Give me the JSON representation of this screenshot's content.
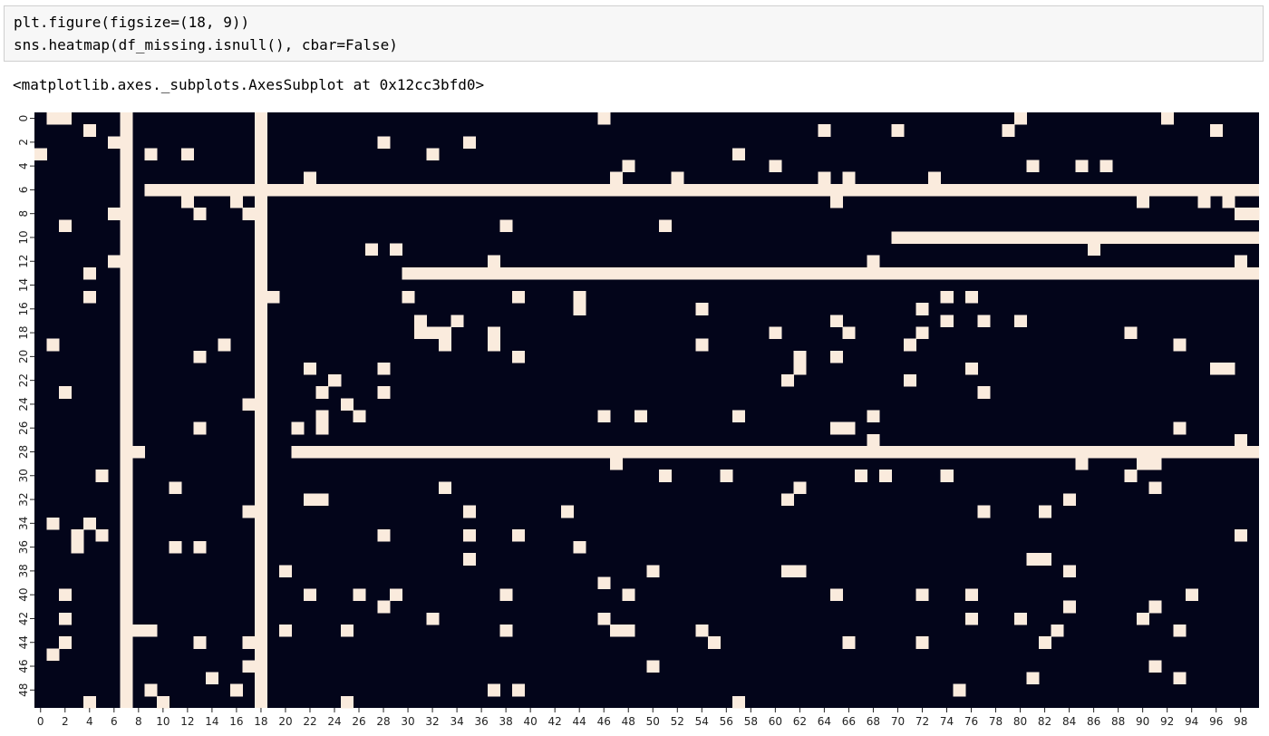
{
  "code": {
    "lines": [
      "plt.figure(figsize=(18, 9))",
      "sns.heatmap(df_missing.isnull(), cbar=False)"
    ]
  },
  "output": {
    "repr": "<matplotlib.axes._subplots.AxesSubplot at 0x12cc3bfd0>"
  },
  "colors": {
    "present": "#03051a",
    "missing": "#faebdd"
  },
  "chart_data": {
    "type": "heatmap",
    "title": "",
    "xlabel": "",
    "ylabel": "",
    "n_rows": 50,
    "n_cols": 100,
    "cbar": false,
    "x_tick_labels": [
      "0",
      "2",
      "4",
      "6",
      "8",
      "10",
      "12",
      "14",
      "16",
      "18",
      "20",
      "22",
      "24",
      "26",
      "28",
      "30",
      "32",
      "34",
      "36",
      "38",
      "40",
      "42",
      "44",
      "46",
      "48",
      "50",
      "52",
      "54",
      "56",
      "58",
      "60",
      "62",
      "64",
      "66",
      "68",
      "70",
      "72",
      "74",
      "76",
      "78",
      "80",
      "82",
      "84",
      "86",
      "88",
      "90",
      "92",
      "94",
      "96",
      "98"
    ],
    "y_tick_labels": [
      "0",
      "2",
      "4",
      "6",
      "8",
      "10",
      "12",
      "14",
      "16",
      "18",
      "20",
      "22",
      "24",
      "26",
      "28",
      "30",
      "32",
      "34",
      "36",
      "38",
      "40",
      "42",
      "44",
      "46",
      "48"
    ],
    "full_missing_columns": [
      7,
      18
    ],
    "missing_row_spans": [
      {
        "row": 6,
        "from_col": 9,
        "to_col": 99
      },
      {
        "row": 10,
        "from_col": 70,
        "to_col": 99
      },
      {
        "row": 13,
        "from_col": 30,
        "to_col": 99
      },
      {
        "row": 28,
        "from_col": 21,
        "to_col": 99
      }
    ],
    "missing_cells": [
      [
        0,
        1
      ],
      [
        0,
        2
      ],
      [
        0,
        46
      ],
      [
        0,
        80
      ],
      [
        0,
        92
      ],
      [
        1,
        4
      ],
      [
        1,
        64
      ],
      [
        1,
        70
      ],
      [
        1,
        79
      ],
      [
        1,
        96
      ],
      [
        2,
        6
      ],
      [
        2,
        28
      ],
      [
        2,
        35
      ],
      [
        3,
        0
      ],
      [
        3,
        9
      ],
      [
        3,
        12
      ],
      [
        3,
        32
      ],
      [
        3,
        57
      ],
      [
        4,
        48
      ],
      [
        4,
        60
      ],
      [
        4,
        81
      ],
      [
        4,
        85
      ],
      [
        4,
        87
      ],
      [
        5,
        22
      ],
      [
        5,
        47
      ],
      [
        5,
        52
      ],
      [
        5,
        64
      ],
      [
        5,
        66
      ],
      [
        5,
        73
      ],
      [
        7,
        12
      ],
      [
        7,
        16
      ],
      [
        7,
        65
      ],
      [
        7,
        90
      ],
      [
        7,
        95
      ],
      [
        7,
        97
      ],
      [
        8,
        6
      ],
      [
        8,
        13
      ],
      [
        8,
        17
      ],
      [
        8,
        98
      ],
      [
        8,
        99
      ],
      [
        9,
        2
      ],
      [
        9,
        38
      ],
      [
        9,
        51
      ],
      [
        11,
        27
      ],
      [
        11,
        29
      ],
      [
        11,
        86
      ],
      [
        12,
        6
      ],
      [
        12,
        37
      ],
      [
        12,
        68
      ],
      [
        12,
        98
      ],
      [
        13,
        4
      ],
      [
        15,
        4
      ],
      [
        15,
        19
      ],
      [
        15,
        30
      ],
      [
        15,
        39
      ],
      [
        15,
        44
      ],
      [
        15,
        74
      ],
      [
        15,
        76
      ],
      [
        16,
        44
      ],
      [
        16,
        54
      ],
      [
        16,
        72
      ],
      [
        17,
        31
      ],
      [
        17,
        34
      ],
      [
        17,
        65
      ],
      [
        17,
        74
      ],
      [
        17,
        77
      ],
      [
        17,
        80
      ],
      [
        18,
        31
      ],
      [
        18,
        32
      ],
      [
        18,
        33
      ],
      [
        18,
        37
      ],
      [
        18,
        60
      ],
      [
        18,
        66
      ],
      [
        18,
        72
      ],
      [
        18,
        89
      ],
      [
        19,
        1
      ],
      [
        19,
        15
      ],
      [
        19,
        33
      ],
      [
        19,
        37
      ],
      [
        19,
        54
      ],
      [
        19,
        71
      ],
      [
        19,
        93
      ],
      [
        20,
        13
      ],
      [
        20,
        39
      ],
      [
        20,
        62
      ],
      [
        20,
        65
      ],
      [
        21,
        22
      ],
      [
        21,
        28
      ],
      [
        21,
        62
      ],
      [
        21,
        76
      ],
      [
        21,
        96
      ],
      [
        21,
        97
      ],
      [
        22,
        24
      ],
      [
        22,
        61
      ],
      [
        22,
        71
      ],
      [
        23,
        2
      ],
      [
        23,
        23
      ],
      [
        23,
        28
      ],
      [
        23,
        77
      ],
      [
        24,
        17
      ],
      [
        24,
        25
      ],
      [
        25,
        23
      ],
      [
        25,
        26
      ],
      [
        25,
        46
      ],
      [
        25,
        49
      ],
      [
        25,
        57
      ],
      [
        25,
        68
      ],
      [
        26,
        13
      ],
      [
        26,
        21
      ],
      [
        26,
        23
      ],
      [
        26,
        65
      ],
      [
        26,
        66
      ],
      [
        26,
        93
      ],
      [
        27,
        68
      ],
      [
        27,
        98
      ],
      [
        28,
        8
      ],
      [
        29,
        47
      ],
      [
        29,
        85
      ],
      [
        29,
        90
      ],
      [
        29,
        91
      ],
      [
        30,
        5
      ],
      [
        30,
        51
      ],
      [
        30,
        56
      ],
      [
        30,
        67
      ],
      [
        30,
        69
      ],
      [
        30,
        74
      ],
      [
        30,
        89
      ],
      [
        31,
        11
      ],
      [
        31,
        33
      ],
      [
        31,
        62
      ],
      [
        31,
        91
      ],
      [
        32,
        22
      ],
      [
        32,
        23
      ],
      [
        32,
        61
      ],
      [
        32,
        84
      ],
      [
        33,
        17
      ],
      [
        33,
        35
      ],
      [
        33,
        43
      ],
      [
        33,
        77
      ],
      [
        33,
        82
      ],
      [
        34,
        1
      ],
      [
        34,
        4
      ],
      [
        35,
        3
      ],
      [
        35,
        5
      ],
      [
        35,
        28
      ],
      [
        35,
        35
      ],
      [
        35,
        39
      ],
      [
        35,
        98
      ],
      [
        36,
        3
      ],
      [
        36,
        11
      ],
      [
        36,
        13
      ],
      [
        36,
        44
      ],
      [
        37,
        35
      ],
      [
        37,
        81
      ],
      [
        37,
        82
      ],
      [
        38,
        20
      ],
      [
        38,
        50
      ],
      [
        38,
        61
      ],
      [
        38,
        62
      ],
      [
        38,
        84
      ],
      [
        39,
        46
      ],
      [
        40,
        2
      ],
      [
        40,
        22
      ],
      [
        40,
        26
      ],
      [
        40,
        29
      ],
      [
        40,
        38
      ],
      [
        40,
        48
      ],
      [
        40,
        65
      ],
      [
        40,
        72
      ],
      [
        40,
        76
      ],
      [
        40,
        94
      ],
      [
        41,
        28
      ],
      [
        41,
        84
      ],
      [
        41,
        91
      ],
      [
        42,
        2
      ],
      [
        42,
        32
      ],
      [
        42,
        46
      ],
      [
        42,
        76
      ],
      [
        42,
        80
      ],
      [
        42,
        90
      ],
      [
        43,
        8
      ],
      [
        43,
        9
      ],
      [
        43,
        20
      ],
      [
        43,
        25
      ],
      [
        43,
        38
      ],
      [
        43,
        47
      ],
      [
        43,
        48
      ],
      [
        43,
        54
      ],
      [
        43,
        83
      ],
      [
        43,
        93
      ],
      [
        44,
        2
      ],
      [
        44,
        13
      ],
      [
        44,
        17
      ],
      [
        44,
        55
      ],
      [
        44,
        66
      ],
      [
        44,
        72
      ],
      [
        44,
        82
      ],
      [
        45,
        1
      ],
      [
        46,
        17
      ],
      [
        46,
        50
      ],
      [
        46,
        91
      ],
      [
        47,
        14
      ],
      [
        47,
        81
      ],
      [
        47,
        93
      ],
      [
        48,
        9
      ],
      [
        48,
        16
      ],
      [
        48,
        37
      ],
      [
        48,
        39
      ],
      [
        48,
        75
      ],
      [
        49,
        4
      ],
      [
        49,
        10
      ],
      [
        49,
        25
      ],
      [
        49,
        57
      ]
    ]
  }
}
